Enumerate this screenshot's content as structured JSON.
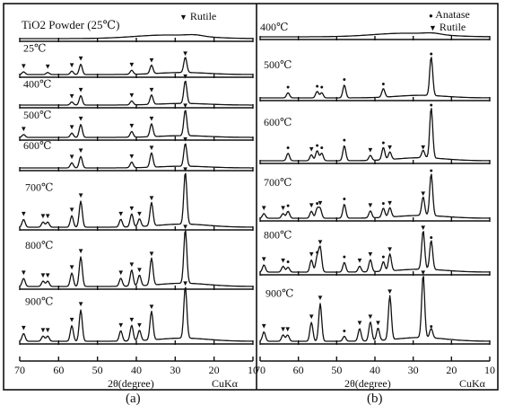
{
  "chart_data": [
    {
      "type": "line",
      "panel": "(a)",
      "title": "TiO2 Powder (25℃)",
      "xlabel": "2θ(degree)",
      "radiation": "CuKα",
      "x_ticks": [
        70,
        60,
        50,
        40,
        30,
        20,
        10
      ],
      "xlim": [
        70,
        10
      ],
      "legend": [
        {
          "marker": "▼",
          "label": "Rutile"
        }
      ],
      "series": [
        {
          "name": "TiO2 Powder (25℃)",
          "peaks": []
        },
        {
          "name": "25℃",
          "peaks": [
            {
              "x": 69.0,
              "h": 0.08,
              "m": "▼"
            },
            {
              "x": 62.8,
              "h": 0.06,
              "m": "▼"
            },
            {
              "x": 56.6,
              "h": 0.1,
              "m": "▼"
            },
            {
              "x": 54.3,
              "h": 0.3,
              "m": "▼"
            },
            {
              "x": 41.2,
              "h": 0.12,
              "m": "▼"
            },
            {
              "x": 36.1,
              "h": 0.25,
              "m": "▼"
            },
            {
              "x": 27.4,
              "h": 0.45,
              "m": "▼"
            }
          ]
        },
        {
          "name": "400℃",
          "peaks": [
            {
              "x": 56.6,
              "h": 0.12,
              "m": "▼"
            },
            {
              "x": 54.3,
              "h": 0.35,
              "m": "▼"
            },
            {
              "x": 41.2,
              "h": 0.15,
              "m": "▼"
            },
            {
              "x": 36.1,
              "h": 0.35,
              "m": "▼"
            },
            {
              "x": 27.4,
              "h": 0.85,
              "m": "▼"
            }
          ]
        },
        {
          "name": "500℃",
          "peaks": [
            {
              "x": 69.0,
              "h": 0.1,
              "m": "▼"
            },
            {
              "x": 56.6,
              "h": 0.15,
              "m": "▼"
            },
            {
              "x": 54.3,
              "h": 0.45,
              "m": "▼"
            },
            {
              "x": 41.2,
              "h": 0.2,
              "m": "▼"
            },
            {
              "x": 36.1,
              "h": 0.45,
              "m": "▼"
            },
            {
              "x": 27.4,
              "h": 0.9,
              "m": "▼"
            }
          ]
        },
        {
          "name": "600℃",
          "peaks": [
            {
              "x": 56.6,
              "h": 0.18,
              "m": "▼"
            },
            {
              "x": 54.3,
              "h": 0.4,
              "m": "▼"
            },
            {
              "x": 41.2,
              "h": 0.2,
              "m": "▼"
            },
            {
              "x": 36.1,
              "h": 0.5,
              "m": "▼"
            },
            {
              "x": 27.4,
              "h": 0.8,
              "m": "▼"
            }
          ]
        },
        {
          "name": "700℃",
          "peaks": [
            {
              "x": 69.0,
              "h": 0.15,
              "m": "▼"
            },
            {
              "x": 64.0,
              "h": 0.1,
              "m": "▼"
            },
            {
              "x": 62.8,
              "h": 0.1,
              "m": "▼"
            },
            {
              "x": 56.6,
              "h": 0.22,
              "m": "▼"
            },
            {
              "x": 54.3,
              "h": 0.5,
              "m": "▼"
            },
            {
              "x": 44.0,
              "h": 0.15,
              "m": "▼"
            },
            {
              "x": 41.2,
              "h": 0.25,
              "m": "▼"
            },
            {
              "x": 39.2,
              "h": 0.15,
              "m": "▼"
            },
            {
              "x": 36.1,
              "h": 0.45,
              "m": "▼"
            },
            {
              "x": 27.4,
              "h": 1.0,
              "m": "▼"
            }
          ]
        },
        {
          "name": "800℃",
          "peaks": [
            {
              "x": 69.0,
              "h": 0.15,
              "m": "▼"
            },
            {
              "x": 64.0,
              "h": 0.1,
              "m": "▼"
            },
            {
              "x": 62.8,
              "h": 0.1,
              "m": "▼"
            },
            {
              "x": 56.6,
              "h": 0.25,
              "m": "▼"
            },
            {
              "x": 54.3,
              "h": 0.55,
              "m": "▼"
            },
            {
              "x": 44.0,
              "h": 0.15,
              "m": "▼"
            },
            {
              "x": 41.2,
              "h": 0.3,
              "m": "▼"
            },
            {
              "x": 39.2,
              "h": 0.2,
              "m": "▼"
            },
            {
              "x": 36.1,
              "h": 0.5,
              "m": "▼"
            },
            {
              "x": 27.4,
              "h": 1.0,
              "m": "▼"
            }
          ]
        },
        {
          "name": "900℃",
          "peaks": [
            {
              "x": 69.0,
              "h": 0.15,
              "m": "▼"
            },
            {
              "x": 64.0,
              "h": 0.1,
              "m": "▼"
            },
            {
              "x": 62.8,
              "h": 0.1,
              "m": "▼"
            },
            {
              "x": 56.6,
              "h": 0.3,
              "m": "▼"
            },
            {
              "x": 54.3,
              "h": 0.6,
              "m": "▼"
            },
            {
              "x": 44.0,
              "h": 0.2,
              "m": "▼"
            },
            {
              "x": 41.2,
              "h": 0.3,
              "m": "▼"
            },
            {
              "x": 39.2,
              "h": 0.2,
              "m": "▼"
            },
            {
              "x": 36.1,
              "h": 0.55,
              "m": "▼"
            },
            {
              "x": 27.4,
              "h": 1.0,
              "m": "▼"
            }
          ]
        }
      ]
    },
    {
      "type": "line",
      "panel": "(b)",
      "xlabel": "2θ(degree)",
      "radiation": "CuKα",
      "x_ticks": [
        70,
        60,
        50,
        40,
        30,
        20,
        10
      ],
      "xlim": [
        70,
        10
      ],
      "legend": [
        {
          "marker": "●",
          "label": "Anatase"
        },
        {
          "marker": "▼",
          "label": "Rutile"
        }
      ],
      "series": [
        {
          "name": "400℃",
          "peaks": []
        },
        {
          "name": "500℃",
          "peaks": [
            {
              "x": 62.7,
              "h": 0.12,
              "m": "●"
            },
            {
              "x": 55.1,
              "h": 0.15,
              "m": "●"
            },
            {
              "x": 53.9,
              "h": 0.12,
              "m": "●"
            },
            {
              "x": 48.0,
              "h": 0.3,
              "m": "●"
            },
            {
              "x": 37.8,
              "h": 0.2,
              "m": "●"
            },
            {
              "x": 25.3,
              "h": 0.9,
              "m": "●"
            }
          ]
        },
        {
          "name": "600℃",
          "peaks": [
            {
              "x": 62.7,
              "h": 0.15,
              "m": "●"
            },
            {
              "x": 56.6,
              "h": 0.12,
              "m": "▼"
            },
            {
              "x": 55.1,
              "h": 0.2,
              "m": "●"
            },
            {
              "x": 53.9,
              "h": 0.15,
              "m": "●"
            },
            {
              "x": 48.0,
              "h": 0.3,
              "m": "●"
            },
            {
              "x": 41.2,
              "h": 0.1,
              "m": "▼"
            },
            {
              "x": 37.8,
              "h": 0.25,
              "m": "●"
            },
            {
              "x": 36.1,
              "h": 0.15,
              "m": "▼"
            },
            {
              "x": 27.4,
              "h": 0.15,
              "m": "▼"
            },
            {
              "x": 25.3,
              "h": 1.0,
              "m": "●"
            }
          ]
        },
        {
          "name": "700℃",
          "peaks": [
            {
              "x": 69.0,
              "h": 0.1,
              "m": "▼"
            },
            {
              "x": 64.0,
              "h": 0.1,
              "m": "▼"
            },
            {
              "x": 62.7,
              "h": 0.15,
              "m": "●"
            },
            {
              "x": 56.6,
              "h": 0.15,
              "m": "▼"
            },
            {
              "x": 55.1,
              "h": 0.2,
              "m": "●"
            },
            {
              "x": 54.3,
              "h": 0.2,
              "m": "▼"
            },
            {
              "x": 48.0,
              "h": 0.3,
              "m": "●"
            },
            {
              "x": 41.2,
              "h": 0.15,
              "m": "▼"
            },
            {
              "x": 37.8,
              "h": 0.2,
              "m": "●"
            },
            {
              "x": 36.1,
              "h": 0.2,
              "m": "▼"
            },
            {
              "x": 27.4,
              "h": 0.4,
              "m": "▼"
            },
            {
              "x": 25.3,
              "h": 0.9,
              "m": "●"
            }
          ]
        },
        {
          "name": "800℃",
          "peaks": [
            {
              "x": 69.0,
              "h": 0.15,
              "m": "▼"
            },
            {
              "x": 64.0,
              "h": 0.12,
              "m": "▼"
            },
            {
              "x": 62.7,
              "h": 0.1,
              "m": "●"
            },
            {
              "x": 56.6,
              "h": 0.25,
              "m": "▼"
            },
            {
              "x": 55.1,
              "h": 0.3,
              "m": "●"
            },
            {
              "x": 54.3,
              "h": 0.5,
              "m": "▼"
            },
            {
              "x": 48.0,
              "h": 0.2,
              "m": "●"
            },
            {
              "x": 44.0,
              "h": 0.12,
              "m": "▼"
            },
            {
              "x": 41.2,
              "h": 0.25,
              "m": "▼"
            },
            {
              "x": 37.8,
              "h": 0.2,
              "m": "●"
            },
            {
              "x": 36.1,
              "h": 0.35,
              "m": "▼"
            },
            {
              "x": 27.4,
              "h": 0.8,
              "m": "▼"
            },
            {
              "x": 25.3,
              "h": 0.6,
              "m": "●"
            }
          ]
        },
        {
          "name": "900℃",
          "peaks": [
            {
              "x": 69.0,
              "h": 0.15,
              "m": "▼"
            },
            {
              "x": 64.0,
              "h": 0.1,
              "m": "▼"
            },
            {
              "x": 62.8,
              "h": 0.1,
              "m": "▼"
            },
            {
              "x": 56.6,
              "h": 0.3,
              "m": "▼"
            },
            {
              "x": 54.3,
              "h": 0.6,
              "m": "▼"
            },
            {
              "x": 48.0,
              "h": 0.08,
              "m": "●"
            },
            {
              "x": 44.0,
              "h": 0.2,
              "m": "▼"
            },
            {
              "x": 41.2,
              "h": 0.3,
              "m": "▼"
            },
            {
              "x": 39.2,
              "h": 0.2,
              "m": "▼"
            },
            {
              "x": 36.1,
              "h": 0.7,
              "m": "▼"
            },
            {
              "x": 27.4,
              "h": 1.0,
              "m": "▼"
            },
            {
              "x": 25.3,
              "h": 0.15,
              "m": "●"
            }
          ]
        }
      ]
    }
  ]
}
